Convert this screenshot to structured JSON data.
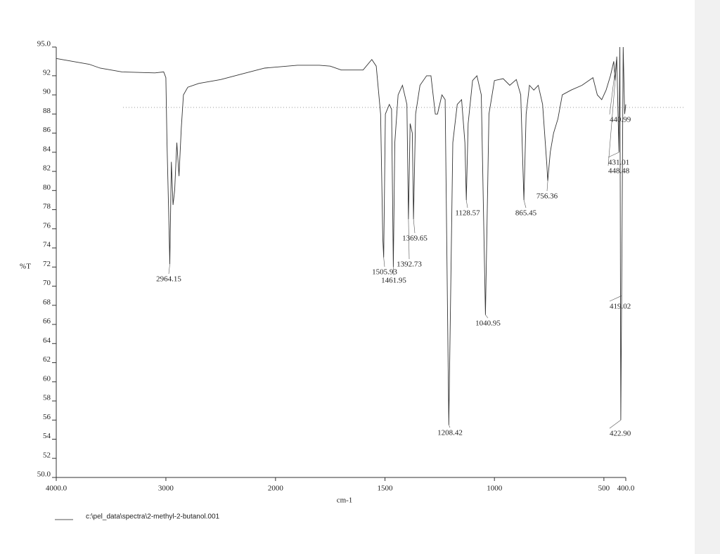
{
  "chart_data": {
    "type": "line",
    "xlabel": "cm-1",
    "ylabel": "%T",
    "xlim": [
      4000,
      400
    ],
    "xbreak": 2000,
    "xticks": [
      {
        "value": 4000,
        "label": "4000.0"
      },
      3000,
      2000,
      1500,
      1000,
      500,
      {
        "value": 400,
        "label": "400.0"
      }
    ],
    "ylim": [
      50,
      95
    ],
    "yticks": [
      {
        "value": 95,
        "label": "95.0"
      },
      92,
      90,
      88,
      86,
      84,
      82,
      80,
      78,
      76,
      74,
      72,
      70,
      68,
      66,
      64,
      62,
      60,
      58,
      56,
      54,
      52,
      {
        "value": 50,
        "label": "50.0"
      }
    ],
    "x": [
      4000,
      3800,
      3700,
      3600,
      3400,
      3100,
      3020,
      3000,
      2990,
      2975,
      2964.15,
      2950,
      2935,
      2920,
      2900,
      2880,
      2860,
      2840,
      2800,
      2700,
      2500,
      2300,
      2100,
      1900,
      1800,
      1750,
      1700,
      1600,
      1560,
      1540,
      1520,
      1510,
      1505.93,
      1498,
      1480,
      1470,
      1461.95,
      1455,
      1440,
      1420,
      1400,
      1392.73,
      1385,
      1375,
      1369.65,
      1360,
      1340,
      1310,
      1290,
      1270,
      1260,
      1240,
      1225,
      1208.42,
      1190,
      1170,
      1150,
      1135,
      1128.57,
      1120,
      1100,
      1080,
      1060,
      1040.95,
      1025,
      1000,
      960,
      930,
      900,
      880,
      865.45,
      855,
      840,
      820,
      800,
      780,
      760,
      756.36,
      745,
      730,
      710,
      690,
      650,
      600,
      550,
      530,
      510,
      490,
      470,
      455,
      448.48,
      440.99,
      436,
      431.01,
      427,
      422.9,
      419.02,
      412,
      405,
      400
    ],
    "series": [
      {
        "name": "c:\\pel_data\\spectra\\2-methyl-2-butanol.001",
        "color": "#333333",
        "values": [
          93.8,
          93.4,
          93.2,
          92.8,
          92.4,
          92.3,
          92.4,
          91.8,
          85,
          78,
          72.3,
          83,
          78.5,
          80,
          85,
          81.5,
          86.5,
          90,
          90.8,
          91.2,
          91.6,
          92.2,
          92.8,
          93.1,
          93.1,
          93,
          92.6,
          92.6,
          93.7,
          93,
          88,
          75,
          73,
          88,
          89,
          88.5,
          72,
          85,
          90,
          91,
          89,
          77,
          87,
          86,
          77,
          88,
          91,
          92,
          92,
          88,
          88,
          90,
          89.5,
          55.5,
          85,
          89,
          89.5,
          85,
          79,
          87,
          91.5,
          92,
          90,
          67,
          88,
          91.5,
          91.7,
          91,
          91.6,
          90,
          79,
          88,
          91,
          90.5,
          91,
          89,
          82.5,
          81,
          84,
          86,
          87.5,
          90,
          90.5,
          91,
          91.8,
          90,
          89.5,
          90.5,
          92,
          93.5,
          91.5,
          94,
          88.5,
          84,
          95,
          56,
          69,
          95,
          88,
          89
        ]
      }
    ],
    "peaks": [
      {
        "x": 2964.15,
        "y": 72.3
      },
      {
        "x": 1505.93,
        "y": 73
      },
      {
        "x": 1461.95,
        "y": 72
      },
      {
        "x": 1392.73,
        "y": 77
      },
      {
        "x": 1369.65,
        "y": 77
      },
      {
        "x": 1208.42,
        "y": 55.5
      },
      {
        "x": 1128.57,
        "y": 79
      },
      {
        "x": 1040.95,
        "y": 67
      },
      {
        "x": 865.45,
        "y": 79
      },
      {
        "x": 756.36,
        "y": 81
      },
      {
        "x": 440.99,
        "y": 94
      },
      {
        "x": 431.01,
        "y": 84
      },
      {
        "x": 448.48,
        "y": 91.5
      },
      {
        "x": 419.02,
        "y": 69
      },
      {
        "x": 422.9,
        "y": 56,
        "label": "422.90"
      }
    ]
  }
}
